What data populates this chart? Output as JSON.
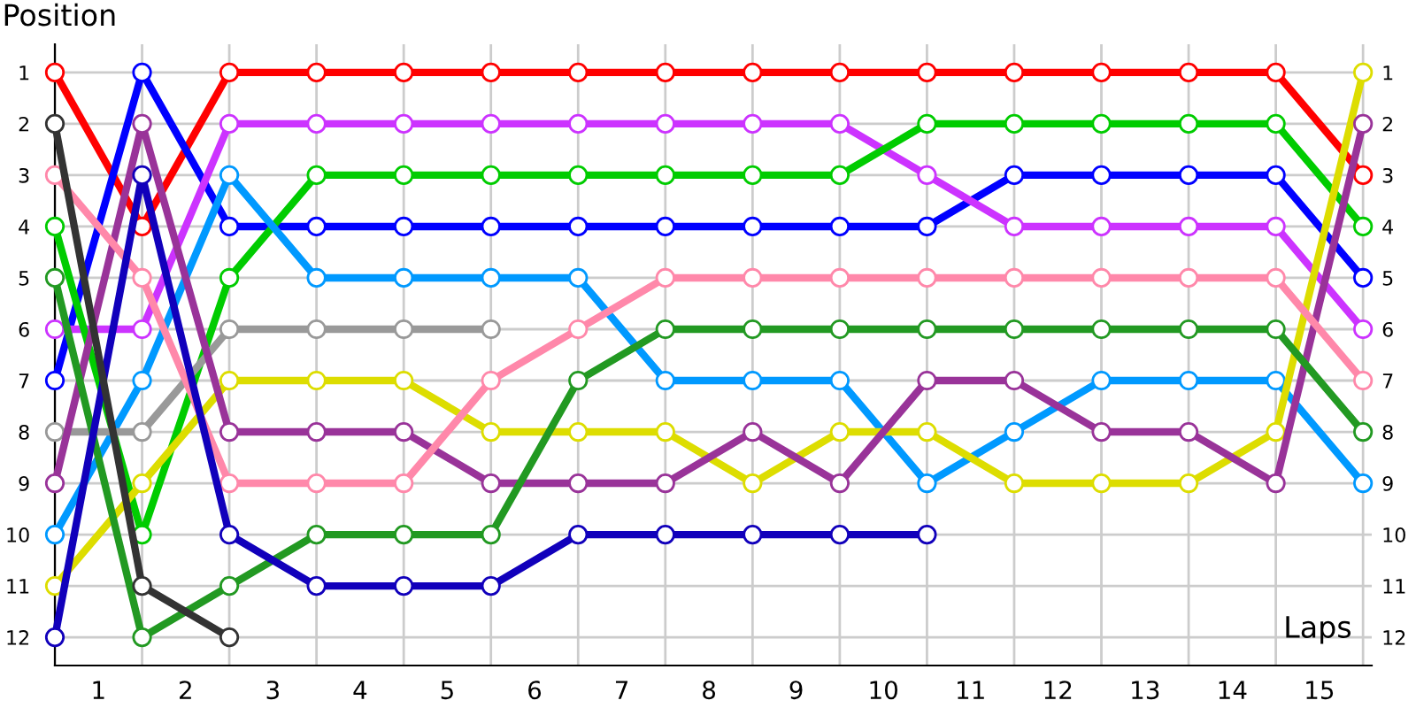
{
  "chart_data": {
    "type": "line",
    "ylabel": "Position",
    "xlabel": "Laps",
    "marker": "circle",
    "line_style": "solid",
    "grid": true,
    "x": [
      0,
      1,
      2,
      3,
      4,
      5,
      6,
      7,
      8,
      9,
      10,
      11,
      12,
      13,
      14,
      15
    ],
    "xlim": [
      0,
      15.1
    ],
    "xticks": [
      {
        "value": 0,
        "label": null
      },
      {
        "value": 1,
        "label": null
      },
      {
        "value": 2,
        "label": null
      },
      {
        "value": 3,
        "label": null
      },
      {
        "value": 4,
        "label": null
      },
      {
        "value": 5,
        "label": null
      },
      {
        "value": 6,
        "label": null
      },
      {
        "value": 7,
        "label": null
      },
      {
        "value": 8,
        "label": null
      },
      {
        "value": 9,
        "label": null
      },
      {
        "value": 10,
        "label": null
      },
      {
        "value": 11,
        "label": null
      },
      {
        "value": 12,
        "label": null
      },
      {
        "value": 13,
        "label": null
      },
      {
        "value": 14,
        "label": null
      },
      {
        "value": 15,
        "label": null
      },
      {
        "value": 0.5,
        "label": "1"
      },
      {
        "value": 1.5,
        "label": "2"
      },
      {
        "value": 2.5,
        "label": "3"
      },
      {
        "value": 3.5,
        "label": "4"
      },
      {
        "value": 4.5,
        "label": "5"
      },
      {
        "value": 5.5,
        "label": "6"
      },
      {
        "value": 6.5,
        "label": "7"
      },
      {
        "value": 7.5,
        "label": "8"
      },
      {
        "value": 8.5,
        "label": "9"
      },
      {
        "value": 9.5,
        "label": "10"
      },
      {
        "value": 10.5,
        "label": "11"
      },
      {
        "value": 11.5,
        "label": "12"
      },
      {
        "value": 12.5,
        "label": "13"
      },
      {
        "value": 13.5,
        "label": "14"
      },
      {
        "value": 14.5,
        "label": "15"
      }
    ],
    "ylim": [
      12.55,
      0.45
    ],
    "yticks": [
      1,
      2,
      3,
      4,
      5,
      6,
      7,
      8,
      9,
      10,
      11,
      12
    ],
    "y2lim": [
      12.55,
      0.45
    ],
    "y2ticks": [
      1,
      2,
      3,
      4,
      5,
      6,
      7,
      8,
      9,
      10,
      11,
      12
    ],
    "series": [
      {
        "color": "#ff0000",
        "values": [
          1,
          4,
          1,
          1,
          1,
          1,
          1,
          1,
          1,
          1,
          1,
          1,
          1,
          1,
          1,
          3
        ]
      },
      {
        "color": "#0000ff",
        "values": [
          7,
          1,
          4,
          4,
          4,
          4,
          4,
          4,
          4,
          4,
          4,
          3,
          3,
          3,
          3,
          5
        ]
      },
      {
        "color": "#cc33ff",
        "values": [
          6,
          6,
          2,
          2,
          2,
          2,
          2,
          2,
          2,
          2,
          3,
          4,
          4,
          4,
          4,
          6
        ]
      },
      {
        "color": "#00cc00",
        "values": [
          4,
          10,
          5,
          3,
          3,
          3,
          3,
          3,
          3,
          3,
          2,
          2,
          2,
          2,
          2,
          4
        ]
      },
      {
        "color": "#0099ff",
        "values": [
          10,
          7,
          3,
          5,
          5,
          5,
          5,
          7,
          7,
          7,
          9,
          8,
          7,
          7,
          7,
          9
        ]
      },
      {
        "color": "#999999",
        "values": [
          8,
          8,
          6,
          6,
          6,
          6,
          null,
          null,
          null,
          null,
          null,
          null,
          null,
          null,
          null,
          null
        ]
      },
      {
        "color": "#dddd00",
        "values": [
          11,
          9,
          7,
          7,
          7,
          8,
          8,
          8,
          9,
          8,
          8,
          9,
          9,
          9,
          8,
          1
        ]
      },
      {
        "color": "#993399",
        "values": [
          9,
          2,
          8,
          8,
          8,
          9,
          9,
          9,
          8,
          9,
          7,
          7,
          8,
          8,
          9,
          2
        ]
      },
      {
        "color": "#ff88aa",
        "values": [
          3,
          5,
          9,
          9,
          9,
          7,
          6,
          5,
          5,
          5,
          5,
          5,
          5,
          5,
          5,
          7
        ]
      },
      {
        "color": "#229922",
        "values": [
          5,
          12,
          11,
          10,
          10,
          10,
          7,
          6,
          6,
          6,
          6,
          6,
          6,
          6,
          6,
          8
        ]
      },
      {
        "color": "#1100bb",
        "values": [
          12,
          3,
          10,
          11,
          11,
          11,
          10,
          10,
          10,
          10,
          10,
          null,
          null,
          null,
          null,
          null
        ]
      },
      {
        "color": "#333333",
        "values": [
          2,
          11,
          12,
          null,
          null,
          null,
          null,
          null,
          null,
          null,
          null,
          null,
          null,
          null,
          null,
          null
        ]
      }
    ]
  }
}
